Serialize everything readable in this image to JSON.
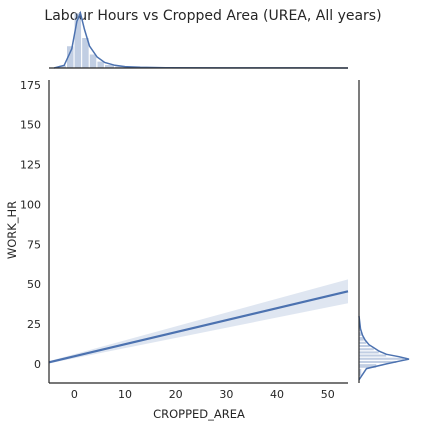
{
  "chart_data": {
    "type": "scatter",
    "title": "Labour Hours vs Cropped Area (UREA, All years)",
    "xlabel": "CROPPED_AREA",
    "ylabel": "WORK_HR",
    "xlim": [
      -5,
      54
    ],
    "ylim": [
      -12,
      178
    ],
    "x_ticks": [
      "0",
      "10",
      "20",
      "30",
      "40",
      "50"
    ],
    "y_ticks": [
      "0",
      "25",
      "50",
      "75",
      "100",
      "125",
      "150",
      "175"
    ],
    "grid": false,
    "color": "#4c72b0",
    "regression": {
      "x": [
        -5,
        54
      ],
      "y": [
        1.0,
        45.5
      ],
      "ci_lower": [
        0.3,
        38.0
      ],
      "ci_upper": [
        1.7,
        53.0
      ]
    },
    "marginal_x": {
      "hist_bins": [
        [
          -3,
          -1.5,
          0.05
        ],
        [
          -1.5,
          0,
          0.4
        ],
        [
          0,
          1.5,
          1.0
        ],
        [
          1.5,
          3,
          0.55
        ],
        [
          3,
          4.5,
          0.25
        ],
        [
          4.5,
          6,
          0.12
        ],
        [
          6,
          8,
          0.06
        ],
        [
          8,
          11,
          0.03
        ],
        [
          11,
          15,
          0.015
        ],
        [
          15,
          52,
          0.004
        ]
      ],
      "kde": [
        [
          -4,
          0.0
        ],
        [
          -2,
          0.05
        ],
        [
          -0.5,
          0.35
        ],
        [
          0.5,
          0.85
        ],
        [
          1.2,
          1.0
        ],
        [
          2,
          0.7
        ],
        [
          3,
          0.4
        ],
        [
          4.5,
          0.2
        ],
        [
          6,
          0.1
        ],
        [
          8,
          0.05
        ],
        [
          10,
          0.025
        ],
        [
          13,
          0.012
        ],
        [
          18,
          0.005
        ],
        [
          30,
          0.002
        ],
        [
          45,
          0.001
        ],
        [
          54,
          0.0
        ]
      ]
    },
    "marginal_y": {
      "hist_bins": [
        [
          -8,
          -3,
          0.05
        ],
        [
          -3,
          0,
          0.35
        ],
        [
          0,
          2,
          0.75
        ],
        [
          2,
          4,
          0.9
        ],
        [
          4,
          6,
          0.55
        ],
        [
          6,
          8,
          0.4
        ],
        [
          8,
          10,
          0.3
        ],
        [
          10,
          12,
          0.22
        ],
        [
          12,
          14,
          0.15
        ],
        [
          14,
          17,
          0.1
        ],
        [
          17,
          20,
          0.06
        ],
        [
          20,
          25,
          0.03
        ]
      ],
      "kde": [
        [
          -10,
          0.0
        ],
        [
          -3,
          0.15
        ],
        [
          0,
          0.55
        ],
        [
          2,
          0.85
        ],
        [
          3,
          1.0
        ],
        [
          4.5,
          0.8
        ],
        [
          6,
          0.55
        ],
        [
          8,
          0.4
        ],
        [
          10,
          0.3
        ],
        [
          12,
          0.2
        ],
        [
          15,
          0.12
        ],
        [
          18,
          0.07
        ],
        [
          22,
          0.03
        ],
        [
          30,
          0.0
        ]
      ]
    }
  }
}
